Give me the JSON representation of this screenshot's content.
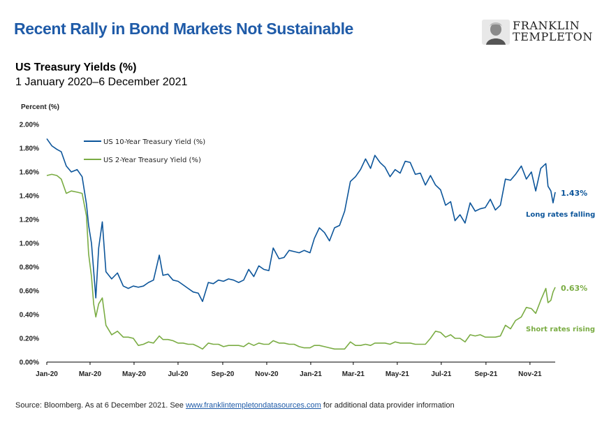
{
  "header": {
    "title": "Recent Rally in Bond Markets Not Sustainable",
    "logo_line1": "FRANKLIN",
    "logo_line2": "TEMPLETON"
  },
  "chart_header": {
    "subtitle": "US Treasury Yields (%)",
    "date_range": "1 January 2020–6 December 2021"
  },
  "footer": {
    "source_prefix": "Source: Bloomberg. As at 6 December 2021. See ",
    "source_link": "www.franklintempletondatasources.com",
    "source_suffix": " for additional data provider information"
  },
  "colors": {
    "title": "#1f5ba8",
    "series_10y": "#0c559a",
    "series_2y": "#7aac43",
    "axis": "#000000"
  },
  "chart_data": {
    "type": "line",
    "ylabel": "Percent (%)",
    "xlabel": "",
    "ylim": [
      0,
      2.0
    ],
    "ytick_values": [
      0,
      0.2,
      0.4,
      0.6,
      0.8,
      1.0,
      1.2,
      1.4,
      1.6,
      1.8,
      2.0
    ],
    "ytick_labels": [
      "0.00%",
      "0.20%",
      "0.40%",
      "0.60%",
      "0.80%",
      "1.00%",
      "1.20%",
      "1.40%",
      "1.60%",
      "1.80%",
      "2.00%"
    ],
    "xlim": [
      "2020-01-01",
      "2021-12-06"
    ],
    "xtick_dates": [
      "2020-01-01",
      "2020-03-01",
      "2020-05-01",
      "2020-07-01",
      "2020-09-01",
      "2020-11-01",
      "2021-01-01",
      "2021-03-01",
      "2021-05-01",
      "2021-07-01",
      "2021-09-01",
      "2021-11-01"
    ],
    "xtick_labels": [
      "Jan-20",
      "Mar-20",
      "May-20",
      "Jul-20",
      "Sep-20",
      "Nov-20",
      "Jan-21",
      "Mar-21",
      "May-21",
      "Jul-21",
      "Sep-21",
      "Nov-21"
    ],
    "grid": false,
    "legend_position": "top-left",
    "series": [
      {
        "name": "US 10-Year Treasury Yield (%)",
        "color": "#0c559a",
        "end_label": "1.43%",
        "annotation": "Long rates falling",
        "points": [
          [
            "2020-01-01",
            1.88
          ],
          [
            "2020-01-08",
            1.82
          ],
          [
            "2020-01-15",
            1.79
          ],
          [
            "2020-01-21",
            1.77
          ],
          [
            "2020-01-28",
            1.65
          ],
          [
            "2020-02-04",
            1.6
          ],
          [
            "2020-02-12",
            1.62
          ],
          [
            "2020-02-19",
            1.56
          ],
          [
            "2020-02-25",
            1.33
          ],
          [
            "2020-02-28",
            1.15
          ],
          [
            "2020-03-03",
            1.0
          ],
          [
            "2020-03-06",
            0.77
          ],
          [
            "2020-03-09",
            0.54
          ],
          [
            "2020-03-13",
            0.96
          ],
          [
            "2020-03-18",
            1.18
          ],
          [
            "2020-03-23",
            0.76
          ],
          [
            "2020-03-31",
            0.7
          ],
          [
            "2020-04-08",
            0.75
          ],
          [
            "2020-04-16",
            0.64
          ],
          [
            "2020-04-23",
            0.62
          ],
          [
            "2020-04-30",
            0.64
          ],
          [
            "2020-05-07",
            0.63
          ],
          [
            "2020-05-14",
            0.64
          ],
          [
            "2020-05-21",
            0.67
          ],
          [
            "2020-05-28",
            0.69
          ],
          [
            "2020-06-05",
            0.9
          ],
          [
            "2020-06-10",
            0.73
          ],
          [
            "2020-06-17",
            0.74
          ],
          [
            "2020-06-24",
            0.69
          ],
          [
            "2020-07-01",
            0.68
          ],
          [
            "2020-07-08",
            0.65
          ],
          [
            "2020-07-15",
            0.62
          ],
          [
            "2020-07-22",
            0.59
          ],
          [
            "2020-07-29",
            0.58
          ],
          [
            "2020-08-04",
            0.51
          ],
          [
            "2020-08-12",
            0.67
          ],
          [
            "2020-08-19",
            0.66
          ],
          [
            "2020-08-26",
            0.69
          ],
          [
            "2020-09-02",
            0.68
          ],
          [
            "2020-09-09",
            0.7
          ],
          [
            "2020-09-16",
            0.69
          ],
          [
            "2020-09-23",
            0.67
          ],
          [
            "2020-09-30",
            0.69
          ],
          [
            "2020-10-07",
            0.78
          ],
          [
            "2020-10-14",
            0.72
          ],
          [
            "2020-10-21",
            0.81
          ],
          [
            "2020-10-28",
            0.78
          ],
          [
            "2020-11-04",
            0.77
          ],
          [
            "2020-11-10",
            0.96
          ],
          [
            "2020-11-18",
            0.87
          ],
          [
            "2020-11-25",
            0.88
          ],
          [
            "2020-12-02",
            0.94
          ],
          [
            "2020-12-09",
            0.93
          ],
          [
            "2020-12-16",
            0.92
          ],
          [
            "2020-12-23",
            0.94
          ],
          [
            "2020-12-31",
            0.92
          ],
          [
            "2021-01-06",
            1.04
          ],
          [
            "2021-01-13",
            1.13
          ],
          [
            "2021-01-20",
            1.09
          ],
          [
            "2021-01-27",
            1.02
          ],
          [
            "2021-02-03",
            1.13
          ],
          [
            "2021-02-10",
            1.15
          ],
          [
            "2021-02-17",
            1.27
          ],
          [
            "2021-02-25",
            1.52
          ],
          [
            "2021-03-04",
            1.56
          ],
          [
            "2021-03-11",
            1.62
          ],
          [
            "2021-03-18",
            1.71
          ],
          [
            "2021-03-25",
            1.63
          ],
          [
            "2021-03-31",
            1.74
          ],
          [
            "2021-04-07",
            1.68
          ],
          [
            "2021-04-14",
            1.64
          ],
          [
            "2021-04-21",
            1.56
          ],
          [
            "2021-04-28",
            1.62
          ],
          [
            "2021-05-05",
            1.59
          ],
          [
            "2021-05-12",
            1.69
          ],
          [
            "2021-05-19",
            1.68
          ],
          [
            "2021-05-26",
            1.58
          ],
          [
            "2021-06-02",
            1.59
          ],
          [
            "2021-06-09",
            1.49
          ],
          [
            "2021-06-16",
            1.57
          ],
          [
            "2021-06-23",
            1.49
          ],
          [
            "2021-06-30",
            1.45
          ],
          [
            "2021-07-07",
            1.32
          ],
          [
            "2021-07-14",
            1.35
          ],
          [
            "2021-07-20",
            1.19
          ],
          [
            "2021-07-27",
            1.24
          ],
          [
            "2021-08-03",
            1.17
          ],
          [
            "2021-08-10",
            1.34
          ],
          [
            "2021-08-17",
            1.27
          ],
          [
            "2021-08-24",
            1.29
          ],
          [
            "2021-08-31",
            1.3
          ],
          [
            "2021-09-07",
            1.37
          ],
          [
            "2021-09-14",
            1.28
          ],
          [
            "2021-09-21",
            1.32
          ],
          [
            "2021-09-28",
            1.54
          ],
          [
            "2021-10-05",
            1.53
          ],
          [
            "2021-10-12",
            1.58
          ],
          [
            "2021-10-20",
            1.65
          ],
          [
            "2021-10-27",
            1.54
          ],
          [
            "2021-11-03",
            1.6
          ],
          [
            "2021-11-09",
            1.44
          ],
          [
            "2021-11-16",
            1.63
          ],
          [
            "2021-11-23",
            1.67
          ],
          [
            "2021-11-26",
            1.48
          ],
          [
            "2021-11-30",
            1.44
          ],
          [
            "2021-12-03",
            1.34
          ],
          [
            "2021-12-06",
            1.43
          ]
        ]
      },
      {
        "name": "US 2-Year Treasury Yield (%)",
        "color": "#7aac43",
        "end_label": "0.63%",
        "annotation": "Short rates rising",
        "points": [
          [
            "2020-01-01",
            1.57
          ],
          [
            "2020-01-08",
            1.58
          ],
          [
            "2020-01-15",
            1.57
          ],
          [
            "2020-01-21",
            1.54
          ],
          [
            "2020-01-28",
            1.42
          ],
          [
            "2020-02-04",
            1.44
          ],
          [
            "2020-02-12",
            1.43
          ],
          [
            "2020-02-19",
            1.42
          ],
          [
            "2020-02-25",
            1.23
          ],
          [
            "2020-02-28",
            0.91
          ],
          [
            "2020-03-03",
            0.72
          ],
          [
            "2020-03-06",
            0.49
          ],
          [
            "2020-03-09",
            0.38
          ],
          [
            "2020-03-13",
            0.49
          ],
          [
            "2020-03-18",
            0.54
          ],
          [
            "2020-03-23",
            0.31
          ],
          [
            "2020-03-31",
            0.23
          ],
          [
            "2020-04-08",
            0.26
          ],
          [
            "2020-04-16",
            0.21
          ],
          [
            "2020-04-23",
            0.21
          ],
          [
            "2020-04-30",
            0.2
          ],
          [
            "2020-05-07",
            0.14
          ],
          [
            "2020-05-14",
            0.15
          ],
          [
            "2020-05-21",
            0.17
          ],
          [
            "2020-05-28",
            0.16
          ],
          [
            "2020-06-05",
            0.22
          ],
          [
            "2020-06-10",
            0.19
          ],
          [
            "2020-06-17",
            0.19
          ],
          [
            "2020-06-24",
            0.18
          ],
          [
            "2020-07-01",
            0.16
          ],
          [
            "2020-07-08",
            0.16
          ],
          [
            "2020-07-15",
            0.15
          ],
          [
            "2020-07-22",
            0.15
          ],
          [
            "2020-07-29",
            0.13
          ],
          [
            "2020-08-04",
            0.11
          ],
          [
            "2020-08-12",
            0.16
          ],
          [
            "2020-08-19",
            0.15
          ],
          [
            "2020-08-26",
            0.15
          ],
          [
            "2020-09-02",
            0.13
          ],
          [
            "2020-09-09",
            0.14
          ],
          [
            "2020-09-16",
            0.14
          ],
          [
            "2020-09-23",
            0.14
          ],
          [
            "2020-09-30",
            0.13
          ],
          [
            "2020-10-07",
            0.16
          ],
          [
            "2020-10-14",
            0.14
          ],
          [
            "2020-10-21",
            0.16
          ],
          [
            "2020-10-28",
            0.15
          ],
          [
            "2020-11-04",
            0.15
          ],
          [
            "2020-11-10",
            0.18
          ],
          [
            "2020-11-18",
            0.16
          ],
          [
            "2020-11-25",
            0.16
          ],
          [
            "2020-12-02",
            0.15
          ],
          [
            "2020-12-09",
            0.15
          ],
          [
            "2020-12-16",
            0.13
          ],
          [
            "2020-12-23",
            0.12
          ],
          [
            "2020-12-31",
            0.12
          ],
          [
            "2021-01-06",
            0.14
          ],
          [
            "2021-01-13",
            0.14
          ],
          [
            "2021-01-20",
            0.13
          ],
          [
            "2021-01-27",
            0.12
          ],
          [
            "2021-02-03",
            0.11
          ],
          [
            "2021-02-10",
            0.11
          ],
          [
            "2021-02-17",
            0.11
          ],
          [
            "2021-02-25",
            0.17
          ],
          [
            "2021-03-04",
            0.14
          ],
          [
            "2021-03-11",
            0.14
          ],
          [
            "2021-03-18",
            0.15
          ],
          [
            "2021-03-25",
            0.14
          ],
          [
            "2021-03-31",
            0.16
          ],
          [
            "2021-04-07",
            0.16
          ],
          [
            "2021-04-14",
            0.16
          ],
          [
            "2021-04-21",
            0.15
          ],
          [
            "2021-04-28",
            0.17
          ],
          [
            "2021-05-05",
            0.16
          ],
          [
            "2021-05-12",
            0.16
          ],
          [
            "2021-05-19",
            0.16
          ],
          [
            "2021-05-26",
            0.15
          ],
          [
            "2021-06-02",
            0.15
          ],
          [
            "2021-06-09",
            0.15
          ],
          [
            "2021-06-16",
            0.2
          ],
          [
            "2021-06-23",
            0.26
          ],
          [
            "2021-06-30",
            0.25
          ],
          [
            "2021-07-07",
            0.21
          ],
          [
            "2021-07-14",
            0.23
          ],
          [
            "2021-07-20",
            0.2
          ],
          [
            "2021-07-27",
            0.2
          ],
          [
            "2021-08-03",
            0.17
          ],
          [
            "2021-08-10",
            0.23
          ],
          [
            "2021-08-17",
            0.22
          ],
          [
            "2021-08-24",
            0.23
          ],
          [
            "2021-08-31",
            0.21
          ],
          [
            "2021-09-07",
            0.21
          ],
          [
            "2021-09-14",
            0.21
          ],
          [
            "2021-09-21",
            0.22
          ],
          [
            "2021-09-28",
            0.31
          ],
          [
            "2021-10-05",
            0.28
          ],
          [
            "2021-10-12",
            0.35
          ],
          [
            "2021-10-20",
            0.38
          ],
          [
            "2021-10-27",
            0.46
          ],
          [
            "2021-11-03",
            0.45
          ],
          [
            "2021-11-09",
            0.41
          ],
          [
            "2021-11-16",
            0.52
          ],
          [
            "2021-11-23",
            0.62
          ],
          [
            "2021-11-26",
            0.5
          ],
          [
            "2021-11-30",
            0.52
          ],
          [
            "2021-12-03",
            0.59
          ],
          [
            "2021-12-06",
            0.63
          ]
        ]
      }
    ]
  }
}
